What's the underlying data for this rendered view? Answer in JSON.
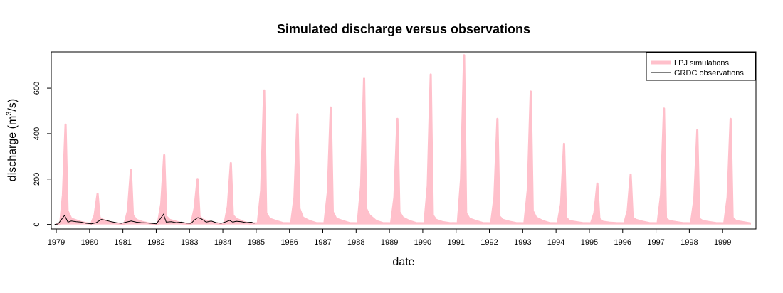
{
  "chart_data": {
    "type": "line",
    "title": "Simulated discharge versus observations",
    "xlabel": "date",
    "ylabel": "discharge (m",
    "ylabel_sup": "3",
    "ylabel_tail": "/s)",
    "xlim": [
      1978.85,
      2000.0
    ],
    "ylim": [
      -20,
      760
    ],
    "x_ticks": [
      "1979",
      "1980",
      "1981",
      "1982",
      "1983",
      "1984",
      "1985",
      "1986",
      "1987",
      "1988",
      "1989",
      "1990",
      "1991",
      "1992",
      "1993",
      "1994",
      "1995",
      "1996",
      "1997",
      "1998",
      "1999"
    ],
    "y_ticks": [
      0,
      200,
      400,
      600
    ],
    "legend": {
      "position": "top-right",
      "entries": [
        {
          "name": "LPJ simulations",
          "color": "#ffc0cb"
        },
        {
          "name": "GRDC observations",
          "color": "#000000"
        }
      ]
    },
    "series": [
      {
        "name": "LPJ simulations",
        "color": "#ffc0cb",
        "x": [
          1979.0,
          1979.12,
          1979.2,
          1979.28,
          1979.34,
          1979.45,
          1979.6,
          1979.75,
          1979.9,
          1980.05,
          1980.15,
          1980.24,
          1980.3,
          1980.4,
          1980.6,
          1980.8,
          1981.05,
          1981.15,
          1981.24,
          1981.3,
          1981.4,
          1981.6,
          1981.8,
          1982.05,
          1982.15,
          1982.24,
          1982.3,
          1982.4,
          1982.6,
          1982.8,
          1983.05,
          1983.15,
          1983.24,
          1983.3,
          1983.4,
          1983.6,
          1983.8,
          1984.05,
          1984.15,
          1984.24,
          1984.3,
          1984.4,
          1984.6,
          1984.8,
          1985.05,
          1985.15,
          1985.24,
          1985.3,
          1985.4,
          1985.6,
          1985.8,
          1986.05,
          1986.15,
          1986.24,
          1986.3,
          1986.4,
          1986.6,
          1986.8,
          1987.05,
          1987.15,
          1987.24,
          1987.3,
          1987.4,
          1987.6,
          1987.8,
          1988.05,
          1988.15,
          1988.24,
          1988.3,
          1988.4,
          1988.6,
          1988.8,
          1989.05,
          1989.15,
          1989.24,
          1989.3,
          1989.4,
          1989.6,
          1989.8,
          1990.05,
          1990.15,
          1990.24,
          1990.3,
          1990.4,
          1990.6,
          1990.8,
          1991.05,
          1991.15,
          1991.24,
          1991.3,
          1991.4,
          1991.6,
          1991.8,
          1992.05,
          1992.15,
          1992.24,
          1992.3,
          1992.4,
          1992.6,
          1992.8,
          1993.05,
          1993.15,
          1993.24,
          1993.3,
          1993.4,
          1993.6,
          1993.8,
          1994.05,
          1994.15,
          1994.24,
          1994.3,
          1994.4,
          1994.6,
          1994.8,
          1995.05,
          1995.15,
          1995.24,
          1995.3,
          1995.4,
          1995.6,
          1995.8,
          1996.05,
          1996.15,
          1996.24,
          1996.3,
          1996.4,
          1996.6,
          1996.8,
          1997.05,
          1997.15,
          1997.24,
          1997.3,
          1997.4,
          1997.6,
          1997.8,
          1998.05,
          1998.15,
          1998.24,
          1998.3,
          1998.4,
          1998.6,
          1998.8,
          1999.05,
          1999.15,
          1999.24,
          1999.3,
          1999.4,
          1999.6,
          1999.85
        ],
        "values": [
          2,
          4,
          130,
          440,
          60,
          25,
          18,
          10,
          6,
          3,
          40,
          135,
          30,
          20,
          10,
          4,
          3,
          60,
          240,
          40,
          20,
          10,
          4,
          3,
          90,
          305,
          35,
          20,
          12,
          4,
          3,
          70,
          200,
          35,
          20,
          12,
          4,
          3,
          80,
          270,
          40,
          25,
          12,
          4,
          5,
          150,
          590,
          50,
          25,
          15,
          6,
          5,
          120,
          485,
          70,
          30,
          15,
          6,
          5,
          140,
          515,
          55,
          25,
          15,
          6,
          5,
          170,
          645,
          70,
          40,
          15,
          6,
          5,
          120,
          465,
          55,
          30,
          15,
          6,
          5,
          170,
          660,
          40,
          20,
          10,
          6,
          5,
          200,
          745,
          50,
          25,
          15,
          6,
          5,
          120,
          465,
          35,
          20,
          12,
          6,
          5,
          150,
          585,
          60,
          30,
          15,
          6,
          5,
          90,
          355,
          30,
          15,
          10,
          6,
          5,
          50,
          180,
          25,
          12,
          8,
          6,
          5,
          60,
          220,
          30,
          20,
          12,
          6,
          5,
          130,
          510,
          25,
          15,
          10,
          6,
          5,
          110,
          415,
          25,
          15,
          10,
          6,
          5,
          120,
          465,
          30,
          15,
          10,
          4
        ]
      },
      {
        "name": "GRDC observations",
        "color": "#000000",
        "x": [
          1978.95,
          1979.05,
          1979.15,
          1979.25,
          1979.35,
          1979.45,
          1979.6,
          1979.75,
          1979.9,
          1980.05,
          1980.2,
          1980.35,
          1980.5,
          1980.65,
          1980.8,
          1980.95,
          1981.1,
          1981.25,
          1981.4,
          1981.55,
          1981.7,
          1981.85,
          1982.0,
          1982.1,
          1982.22,
          1982.3,
          1982.45,
          1982.6,
          1982.75,
          1982.9,
          1983.05,
          1983.15,
          1983.25,
          1983.35,
          1983.5,
          1983.65,
          1983.8,
          1983.95,
          1984.1,
          1984.2,
          1984.3,
          1984.4,
          1984.55,
          1984.7,
          1984.85,
          1984.95
        ],
        "values": [
          0,
          2,
          20,
          40,
          10,
          15,
          12,
          10,
          5,
          3,
          8,
          22,
          18,
          12,
          8,
          5,
          10,
          15,
          10,
          8,
          7,
          5,
          3,
          20,
          45,
          10,
          12,
          8,
          10,
          6,
          5,
          20,
          30,
          25,
          10,
          15,
          8,
          5,
          12,
          18,
          10,
          14,
          12,
          8,
          10,
          5
        ]
      }
    ]
  }
}
